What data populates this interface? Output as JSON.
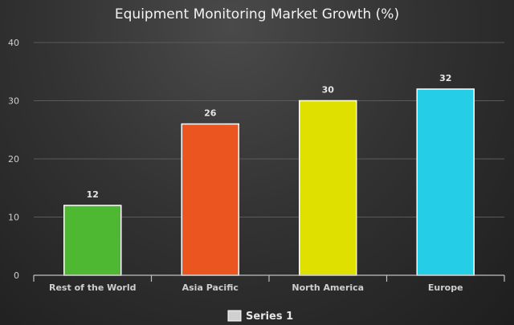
{
  "chart_data": {
    "type": "bar",
    "title": "Equipment Monitoring Market Growth (%)",
    "categories": [
      "Rest of the World",
      "Asia Pacific",
      "North America",
      "Europe"
    ],
    "series": [
      {
        "name": "Series 1",
        "values": [
          12,
          26,
          30,
          32
        ]
      }
    ],
    "bar_colors": [
      "#4fb833",
      "#ea5520",
      "#e0e000",
      "#25cde6"
    ],
    "ylim": [
      0,
      40
    ],
    "yticks": [
      0,
      10,
      20,
      30,
      40
    ],
    "grid": true,
    "legend": {
      "position": "bottom-center",
      "swatch_color": "#d0d0d0"
    },
    "data_labels": true
  }
}
